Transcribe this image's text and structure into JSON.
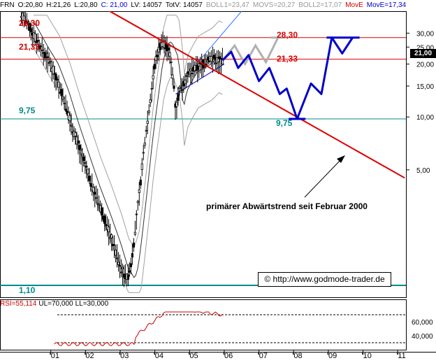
{
  "header": {
    "instrument": "FRN",
    "open": "O:20,80",
    "high": "H:21,26",
    "low": "L:20,80",
    "close": "C: 21,00",
    "volume": "LV: 14057",
    "total_volume": "TotV: 14057",
    "boll1": "BOLL1=23,47",
    "movs": "MOVS=20,27",
    "boll2": "BOLL2=17,07",
    "move_label": "MovE",
    "move_value": "MovE=17,34",
    "colors": {
      "text": "#000000",
      "boll": "#999999",
      "move": "#cc0000",
      "move_value": "#0000cc"
    }
  },
  "levels": {
    "l2830_left": "28,30",
    "l2133_left": "21,33",
    "l975_left": "9,75",
    "l110_left": "1,10",
    "l2830_right": "28,30",
    "l2133_right": "21,33",
    "l975_target": "9,75"
  },
  "current_price_badge": "21,00",
  "annotation": "primärer Abwärtstrend seit Februar 2000",
  "credit": "© http://www.godmode-trader.de",
  "rsi_header": {
    "rsi": "RSI=55,114",
    "ul": "UL=70,000",
    "ll": "LL=30,000"
  },
  "colors": {
    "red": "#dd0000",
    "teal": "#008b8b",
    "blue": "#0000cc",
    "gray_projection": "#b0b0b0",
    "boll_gray": "#a0a0a0",
    "candle": "#000000",
    "rsi_line": "#cc0000"
  },
  "chart_data": {
    "type": "candlestick",
    "y_scale": "log",
    "ylim": [
      0.95,
      40
    ],
    "y_ticks": [
      "30,00",
      "25,00",
      "20,00",
      "15,00",
      "10,00",
      "5,00"
    ],
    "x_ticks": [
      "'01",
      "'02",
      "'03",
      "'04",
      "'05",
      "'06",
      "'07",
      "'08",
      "'09",
      "'10",
      "'11"
    ],
    "horizontal_levels": [
      28.3,
      21.33,
      9.75,
      1.1
    ],
    "price_path": [
      [
        2000.0,
        40
      ],
      [
        2000.3,
        32
      ],
      [
        2000.6,
        25
      ],
      [
        2000.9,
        20
      ],
      [
        2001.2,
        14
      ],
      [
        2001.5,
        9
      ],
      [
        2001.8,
        6
      ],
      [
        2002.1,
        4
      ],
      [
        2002.4,
        2.8
      ],
      [
        2002.7,
        1.9
      ],
      [
        2002.9,
        1.4
      ],
      [
        2003.1,
        1.2
      ],
      [
        2003.2,
        1.4
      ],
      [
        2003.3,
        2.0
      ],
      [
        2003.5,
        4.5
      ],
      [
        2003.6,
        7
      ],
      [
        2003.7,
        10
      ],
      [
        2003.8,
        14
      ],
      [
        2003.9,
        20
      ],
      [
        2004.0,
        24
      ],
      [
        2004.1,
        27
      ],
      [
        2004.2,
        26
      ],
      [
        2004.35,
        22
      ],
      [
        2004.45,
        15
      ],
      [
        2004.5,
        11
      ],
      [
        2004.6,
        14
      ],
      [
        2004.75,
        16
      ],
      [
        2004.9,
        18
      ],
      [
        2005.1,
        19
      ],
      [
        2005.3,
        20
      ],
      [
        2005.5,
        22
      ],
      [
        2005.7,
        21
      ],
      [
        2005.85,
        21
      ]
    ],
    "trendline_primary": {
      "from": [
        2000.0,
        78
      ],
      "to": [
        2011.1,
        4.5
      ]
    },
    "projection_blue": [
      [
        2005.85,
        21
      ],
      [
        2006.1,
        23.5
      ],
      [
        2006.3,
        19
      ],
      [
        2006.6,
        22.5
      ],
      [
        2006.9,
        16
      ],
      [
        2007.2,
        19
      ],
      [
        2007.5,
        13.5
      ],
      [
        2007.7,
        14.5
      ],
      [
        2008.0,
        9.75
      ],
      [
        2008.4,
        15.5
      ],
      [
        2008.7,
        13.5
      ],
      [
        2009.0,
        28.3
      ],
      [
        2009.3,
        23
      ],
      [
        2009.6,
        28.3
      ]
    ],
    "projection_gray": [
      [
        2005.85,
        21
      ],
      [
        2006.2,
        25.5
      ],
      [
        2006.5,
        20
      ],
      [
        2006.8,
        25.5
      ],
      [
        2007.1,
        20.5
      ],
      [
        2007.45,
        28.3
      ]
    ],
    "rsi": {
      "ul": 70,
      "ll": 30,
      "last": 55.114,
      "y_ticks": [
        "60,000",
        "40,000"
      ]
    }
  }
}
